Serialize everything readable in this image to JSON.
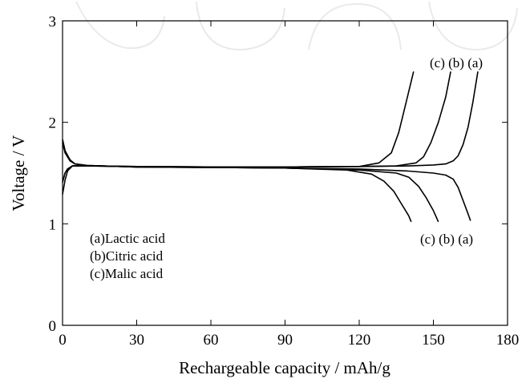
{
  "chart_data": {
    "type": "line",
    "xlabel": "Rechargeable  capacity / mAh/g",
    "ylabel": "Voltage / V",
    "xlim": [
      0,
      180
    ],
    "ylim": [
      0,
      3
    ],
    "x_ticks": [
      "0",
      "30",
      "60",
      "90",
      "120",
      "150",
      "180"
    ],
    "y_ticks": [
      "0",
      "1",
      "2",
      "3"
    ],
    "grid": false,
    "legend_lines": [
      "(a)Lactic acid",
      "(b)Citric acid",
      "(c)Malic acid"
    ],
    "annotation_top": "(c) (b) (a)",
    "annotation_bottom": "(c) (b) (a)",
    "series": [
      {
        "name": "(a)Lactic acid",
        "charge": [
          [
            0,
            1.41
          ],
          [
            1,
            1.5
          ],
          [
            2,
            1.54
          ],
          [
            4,
            1.57
          ],
          [
            10,
            1.57
          ],
          [
            30,
            1.565
          ],
          [
            60,
            1.56
          ],
          [
            90,
            1.56
          ],
          [
            120,
            1.565
          ],
          [
            140,
            1.57
          ],
          [
            150,
            1.58
          ],
          [
            155,
            1.59
          ],
          [
            158,
            1.62
          ],
          [
            160,
            1.67
          ],
          [
            162,
            1.78
          ],
          [
            164,
            1.95
          ],
          [
            166,
            2.2
          ],
          [
            168,
            2.5
          ]
        ],
        "discharge": [
          [
            0,
            1.83
          ],
          [
            1,
            1.72
          ],
          [
            3,
            1.63
          ],
          [
            5,
            1.59
          ],
          [
            10,
            1.575
          ],
          [
            30,
            1.56
          ],
          [
            60,
            1.555
          ],
          [
            90,
            1.55
          ],
          [
            120,
            1.54
          ],
          [
            140,
            1.52
          ],
          [
            150,
            1.5
          ],
          [
            155,
            1.48
          ],
          [
            158,
            1.44
          ],
          [
            160,
            1.36
          ],
          [
            162,
            1.23
          ],
          [
            164,
            1.1
          ],
          [
            165,
            1.03
          ]
        ]
      },
      {
        "name": "(b)Citric acid",
        "charge": [
          [
            0,
            1.41
          ],
          [
            1,
            1.5
          ],
          [
            2,
            1.54
          ],
          [
            4,
            1.57
          ],
          [
            10,
            1.57
          ],
          [
            30,
            1.565
          ],
          [
            60,
            1.56
          ],
          [
            90,
            1.56
          ],
          [
            120,
            1.565
          ],
          [
            135,
            1.57
          ],
          [
            143,
            1.6
          ],
          [
            146,
            1.66
          ],
          [
            149,
            1.8
          ],
          [
            152,
            2.0
          ],
          [
            155,
            2.25
          ],
          [
            157,
            2.5
          ]
        ],
        "discharge": [
          [
            0,
            1.83
          ],
          [
            1,
            1.72
          ],
          [
            3,
            1.63
          ],
          [
            5,
            1.59
          ],
          [
            10,
            1.575
          ],
          [
            30,
            1.56
          ],
          [
            60,
            1.555
          ],
          [
            90,
            1.55
          ],
          [
            120,
            1.53
          ],
          [
            135,
            1.5
          ],
          [
            140,
            1.46
          ],
          [
            144,
            1.37
          ],
          [
            147,
            1.26
          ],
          [
            150,
            1.13
          ],
          [
            152,
            1.02
          ]
        ]
      },
      {
        "name": "(c)Malic acid",
        "charge": [
          [
            0,
            1.29
          ],
          [
            1,
            1.43
          ],
          [
            2,
            1.52
          ],
          [
            4,
            1.57
          ],
          [
            10,
            1.57
          ],
          [
            30,
            1.565
          ],
          [
            60,
            1.56
          ],
          [
            90,
            1.56
          ],
          [
            120,
            1.565
          ],
          [
            128,
            1.6
          ],
          [
            133,
            1.7
          ],
          [
            136,
            1.9
          ],
          [
            139,
            2.2
          ],
          [
            142,
            2.5
          ]
        ],
        "discharge": [
          [
            0,
            1.8
          ],
          [
            1,
            1.7
          ],
          [
            3,
            1.62
          ],
          [
            5,
            1.59
          ],
          [
            10,
            1.575
          ],
          [
            30,
            1.56
          ],
          [
            60,
            1.555
          ],
          [
            90,
            1.55
          ],
          [
            115,
            1.53
          ],
          [
            125,
            1.49
          ],
          [
            130,
            1.42
          ],
          [
            134,
            1.32
          ],
          [
            137,
            1.2
          ],
          [
            140,
            1.08
          ],
          [
            141,
            1.02
          ]
        ]
      }
    ]
  }
}
